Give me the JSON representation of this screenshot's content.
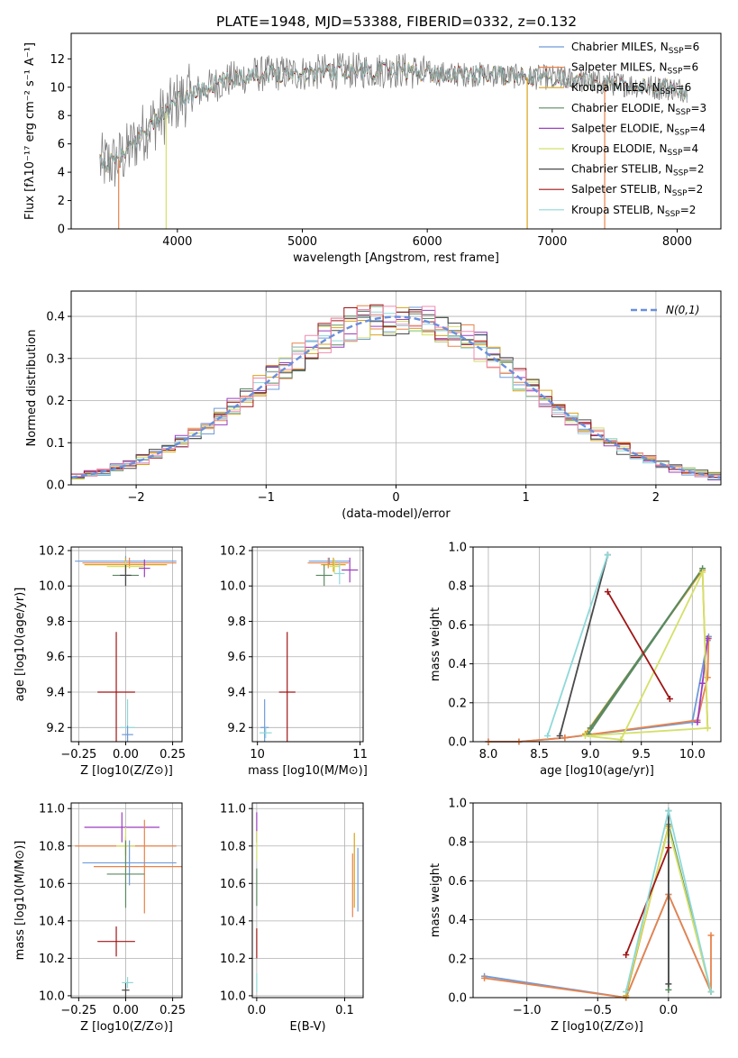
{
  "title": "PLATE=1948, MJD=53388, FIBERID=0332, z=0.132",
  "colors": {
    "chabrier_miles": "#6f9bd8",
    "salpeter_miles": "#e8824a",
    "kroupa_miles": "#d9a21b",
    "chabrier_elodie": "#5b8a62",
    "salpeter_elodie": "#9b3fbf",
    "kroupa_elodie": "#d4e06a",
    "chabrier_stelib": "#4a4a4a",
    "salpeter_stelib": "#a01515",
    "kroupa_stelib": "#8fd8d8",
    "data": "#808080",
    "normal_curve": "#6a8fdc"
  },
  "chart_data": [
    {
      "id": "spectrum",
      "type": "line",
      "xlabel": "wavelength [Angstrom, rest frame]",
      "ylabel": "Flux [fλ10⁻¹⁷ erg cm⁻² s⁻¹ A⁻¹]",
      "xlim": [
        3150,
        8350
      ],
      "ylim": [
        0,
        13.8
      ],
      "xticks": [
        4000,
        5000,
        6000,
        7000,
        8000
      ],
      "yticks": [
        0,
        2,
        4,
        6,
        8,
        10,
        12
      ],
      "x_range_data": [
        3380,
        8080
      ],
      "continuum": {
        "x": [
          3380,
          3500,
          3600,
          3700,
          3800,
          3900,
          4000,
          4100,
          4200,
          4300,
          4400,
          4600,
          4800,
          5000,
          5200,
          5500,
          5800,
          6000,
          6200,
          6500,
          6800,
          7000,
          7200,
          7400,
          7600,
          7800,
          8000,
          8080
        ],
        "y": [
          4.6,
          4.7,
          5.4,
          6.6,
          7.5,
          8.1,
          9.0,
          9.5,
          9.8,
          10.2,
          10.5,
          10.9,
          11.0,
          11.0,
          11.1,
          11.2,
          11.2,
          11.0,
          10.9,
          10.9,
          10.7,
          10.7,
          10.5,
          10.3,
          10.2,
          10.0,
          9.9,
          9.8
        ]
      },
      "legend": [
        {
          "label": "Chabrier MILES, N",
          "sub": "SSP",
          "suffix": "=6",
          "color": "#6f9bd8"
        },
        {
          "label": "Salpeter MILES, N",
          "sub": "SSP",
          "suffix": "=6",
          "color": "#e8824a"
        },
        {
          "label": "Kroupa MILES, N",
          "sub": "SSP",
          "suffix": "=6",
          "color": "#d9a21b"
        },
        {
          "label": "Chabrier ELODIE, N",
          "sub": "SSP",
          "suffix": "=3",
          "color": "#5b8a62"
        },
        {
          "label": "Salpeter ELODIE, N",
          "sub": "SSP",
          "suffix": "=4",
          "color": "#9b3fbf"
        },
        {
          "label": "Kroupa ELODIE, N",
          "sub": "SSP",
          "suffix": "=4",
          "color": "#d4e06a"
        },
        {
          "label": "Chabrier STELIB, N",
          "sub": "SSP",
          "suffix": "=2",
          "color": "#4a4a4a"
        },
        {
          "label": "Salpeter STELIB, N",
          "sub": "SSP",
          "suffix": "=2",
          "color": "#a01515"
        },
        {
          "label": "Kroupa STELIB, N",
          "sub": "SSP",
          "suffix": "=2",
          "color": "#8fd8d8"
        }
      ]
    },
    {
      "id": "residuals",
      "type": "line",
      "xlabel": "(data-model)/error",
      "ylabel": "Normed distribution",
      "xlim": [
        -2.5,
        2.5
      ],
      "ylim": [
        0,
        0.46
      ],
      "xticks": [
        -2,
        -1,
        0,
        1,
        2
      ],
      "xtick_labels": [
        "−2",
        "−1",
        "0",
        "1",
        "2"
      ],
      "yticks": [
        0.0,
        0.1,
        0.2,
        0.3,
        0.4
      ],
      "ytick_labels": [
        "0.0",
        "0.1",
        "0.2",
        "0.3",
        "0.4"
      ],
      "legend_label": "N(0,1)",
      "bin_width": 0.1
    },
    {
      "id": "age_vs_Z",
      "type": "scatter",
      "xlabel": "Z [log10(Z/Z⊙)]",
      "ylabel": "age  [log10(age/yr)]",
      "xlim": [
        -0.29,
        0.3
      ],
      "ylim": [
        9.12,
        10.22
      ],
      "xticks": [
        -0.25,
        0.0,
        0.25
      ],
      "xtick_labels": [
        "−0.25",
        "0.00",
        "0.25"
      ],
      "yticks": [
        9.2,
        9.4,
        9.6,
        9.8,
        10.0,
        10.2
      ],
      "ytick_labels": [
        "9.2",
        "9.4",
        "9.6",
        "9.8",
        "10.0",
        "10.2"
      ],
      "points": [
        {
          "color": "#6f9bd8",
          "x": 0.0,
          "y": 10.14,
          "xerr": 0.27,
          "yerr": 0.03
        },
        {
          "color": "#e8824a",
          "x": 0.02,
          "y": 10.13,
          "xerr": 0.25,
          "yerr": 0.03
        },
        {
          "color": "#d9a21b",
          "x": 0.0,
          "y": 10.12,
          "xerr": 0.22,
          "yerr": 0.04
        },
        {
          "color": "#5b8a62",
          "x": 0.0,
          "y": 10.06,
          "xerr": 0.07,
          "yerr": 0.06
        },
        {
          "color": "#9b3fbf",
          "x": 0.1,
          "y": 10.1,
          "xerr": 0.03,
          "yerr": 0.05
        },
        {
          "color": "#d4e06a",
          "x": 0.0,
          "y": 10.11,
          "xerr": 0.1,
          "yerr": 0.03
        },
        {
          "color": "#4a4a4a",
          "x": 0.0,
          "y": 10.06,
          "xerr": 0.03,
          "yerr": 0.06
        },
        {
          "color": "#a01515",
          "x": -0.05,
          "y": 9.4,
          "xerr": 0.1,
          "yerr": 0.34
        },
        {
          "color": "#8fd8d8",
          "x": 0.01,
          "y": 9.2,
          "xerr": 0.04,
          "yerr": 0.16
        },
        {
          "color": "#6f9bd8",
          "x": 0.01,
          "y": 9.16,
          "xerr": 0.03,
          "yerr": 0.05
        }
      ]
    },
    {
      "id": "age_vs_mass",
      "type": "scatter",
      "xlabel": "mass [log10(M/M⊙)]",
      "ylabel": "",
      "xlim": [
        9.95,
        11.03
      ],
      "ylim": [
        9.12,
        10.22
      ],
      "xticks": [
        10,
        11
      ],
      "xtick_labels": [
        "10",
        "11"
      ],
      "yticks": [
        9.2,
        9.4,
        9.6,
        9.8,
        10.0,
        10.2
      ],
      "ytick_labels": [
        "9.2",
        "9.4",
        "9.6",
        "9.8",
        "10.0",
        "10.2"
      ],
      "points": [
        {
          "color": "#6f9bd8",
          "x": 10.7,
          "y": 10.14,
          "xerr": 0.2,
          "yerr": 0.02
        },
        {
          "color": "#e8824a",
          "x": 10.69,
          "y": 10.13,
          "xerr": 0.2,
          "yerr": 0.03
        },
        {
          "color": "#d9a21b",
          "x": 10.74,
          "y": 10.12,
          "xerr": 0.12,
          "yerr": 0.04
        },
        {
          "color": "#5b8a62",
          "x": 10.65,
          "y": 10.06,
          "xerr": 0.08,
          "yerr": 0.06
        },
        {
          "color": "#9b3fbf",
          "x": 10.9,
          "y": 10.09,
          "xerr": 0.08,
          "yerr": 0.07
        },
        {
          "color": "#d4e06a",
          "x": 10.75,
          "y": 10.11,
          "xerr": 0.05,
          "yerr": 0.04
        },
        {
          "color": "#8fd8d8",
          "x": 10.8,
          "y": 10.07,
          "xerr": 0.05,
          "yerr": 0.06
        },
        {
          "color": "#a01515",
          "x": 10.29,
          "y": 9.4,
          "xerr": 0.08,
          "yerr": 0.34
        },
        {
          "color": "#6f9bd8",
          "x": 10.07,
          "y": 9.2,
          "xerr": 0.04,
          "yerr": 0.16
        },
        {
          "color": "#8fd8d8",
          "x": 10.08,
          "y": 9.17,
          "xerr": 0.06,
          "yerr": 0.03
        }
      ]
    },
    {
      "id": "weight_vs_age",
      "type": "line",
      "xlabel": "age  [log10(age/yr)]",
      "ylabel": "mass weight",
      "xlim": [
        7.85,
        10.28
      ],
      "ylim": [
        0,
        1.0
      ],
      "xticks": [
        8.0,
        8.5,
        9.0,
        9.5,
        10.0
      ],
      "xtick_labels": [
        "8.0",
        "8.5",
        "9.0",
        "9.5",
        "10.0"
      ],
      "yticks": [
        0.0,
        0.2,
        0.4,
        0.6,
        0.8,
        1.0
      ],
      "ytick_labels": [
        "0.0",
        "0.2",
        "0.4",
        "0.6",
        "0.8",
        "1.0"
      ],
      "series": [
        {
          "color": "#6f9bd8",
          "x": [
            8.0,
            8.3,
            8.75,
            10.0,
            10.15,
            10.16
          ],
          "y": [
            0.0,
            0.0,
            0.02,
            0.1,
            0.52,
            0.54
          ]
        },
        {
          "color": "#e8824a",
          "x": [
            8.0,
            8.3,
            8.75,
            10.05,
            10.15,
            10.16
          ],
          "y": [
            0.0,
            0.0,
            0.02,
            0.11,
            0.33,
            0.53
          ]
        },
        {
          "color": "#d9a21b",
          "x": [
            8.95,
            10.1,
            10.15
          ],
          "y": [
            0.04,
            0.88,
            0.07
          ]
        },
        {
          "color": "#5b8a62",
          "x": [
            9.0,
            10.1,
            8.98
          ],
          "y": [
            0.07,
            0.89,
            0.04
          ]
        },
        {
          "color": "#9b3fbf",
          "x": [
            10.05,
            10.1,
            10.15
          ],
          "y": [
            0.1,
            0.3,
            0.53
          ]
        },
        {
          "color": "#d4e06a",
          "x": [
            9.3,
            10.1,
            10.15,
            8.95,
            9.3
          ],
          "y": [
            0.01,
            0.87,
            0.07,
            0.03,
            0.01
          ]
        },
        {
          "color": "#4a4a4a",
          "x": [
            8.7,
            9.17
          ],
          "y": [
            0.03,
            0.96
          ]
        },
        {
          "color": "#a01515",
          "x": [
            9.17,
            9.78
          ],
          "y": [
            0.77,
            0.22
          ]
        },
        {
          "color": "#8fd8d8",
          "x": [
            8.58,
            9.17
          ],
          "y": [
            0.03,
            0.96
          ]
        }
      ]
    },
    {
      "id": "mass_vs_Z",
      "type": "scatter",
      "xlabel": "Z [log10(Z/Z⊙)]",
      "ylabel": "mass [log10(M/M⊙)]",
      "xlim": [
        -0.29,
        0.3
      ],
      "ylim": [
        9.99,
        11.03
      ],
      "xticks": [
        -0.25,
        0.0,
        0.25
      ],
      "xtick_labels": [
        "−0.25",
        "0.00",
        "0.25"
      ],
      "yticks": [
        10.0,
        10.2,
        10.4,
        10.6,
        10.8,
        11.0
      ],
      "ytick_labels": [
        "10.0",
        "10.2",
        "10.4",
        "10.6",
        "10.8",
        "11.0"
      ],
      "points": [
        {
          "color": "#9b3fbf",
          "x": -0.02,
          "y": 10.9,
          "xerr": 0.2,
          "yerr": 0.08
        },
        {
          "color": "#e8824a",
          "x": 0.0,
          "y": 10.8,
          "xerr": 0.27,
          "yerr": 0.05
        },
        {
          "color": "#d4e06a",
          "x": 0.0,
          "y": 10.8,
          "xerr": 0.05,
          "yerr": 0.1
        },
        {
          "color": "#e8824a",
          "x": 0.1,
          "y": 10.69,
          "xerr": 0.27,
          "yerr": 0.25
        },
        {
          "color": "#6f9bd8",
          "x": 0.02,
          "y": 10.71,
          "xerr": 0.25,
          "yerr": 0.12
        },
        {
          "color": "#5b8a62",
          "x": 0.0,
          "y": 10.65,
          "xerr": 0.1,
          "yerr": 0.18
        },
        {
          "color": "#a01515",
          "x": -0.05,
          "y": 10.29,
          "xerr": 0.1,
          "yerr": 0.08
        },
        {
          "color": "#4a4a4a",
          "x": 0.0,
          "y": 10.03,
          "xerr": 0.02,
          "yerr": 0.04
        },
        {
          "color": "#8fd8d8",
          "x": 0.01,
          "y": 10.07,
          "xerr": 0.03,
          "yerr": 0.03
        }
      ]
    },
    {
      "id": "mass_vs_EBV",
      "type": "scatter",
      "xlabel": "E(B-V)",
      "ylabel": "",
      "xlim": [
        -0.005,
        0.121
      ],
      "ylim": [
        9.99,
        11.03
      ],
      "xticks": [
        0.0,
        0.1
      ],
      "xtick_labels": [
        "0.0",
        "0.1"
      ],
      "yticks": [
        10.0,
        10.2,
        10.4,
        10.6,
        10.8,
        11.0
      ],
      "ytick_labels": [
        "10.0",
        "10.2",
        "10.4",
        "10.6",
        "10.8",
        "11.0"
      ],
      "points": [
        {
          "color": "#9b3fbf",
          "x": 0.0,
          "y": 10.9,
          "xerr": 0.0,
          "yerr": 0.08
        },
        {
          "color": "#d4e06a",
          "x": 0.0,
          "y": 10.8,
          "xerr": 0.0,
          "yerr": 0.08
        },
        {
          "color": "#5b8a62",
          "x": 0.0,
          "y": 10.58,
          "xerr": 0.0,
          "yerr": 0.1
        },
        {
          "color": "#a01515",
          "x": 0.0,
          "y": 10.28,
          "xerr": 0.0,
          "yerr": 0.08
        },
        {
          "color": "#8fd8d8",
          "x": 0.0,
          "y": 10.07,
          "xerr": 0.0,
          "yerr": 0.05
        },
        {
          "color": "#e8824a",
          "x": 0.109,
          "y": 10.59,
          "xerr": 0.0,
          "yerr": 0.17
        },
        {
          "color": "#d9a21b",
          "x": 0.111,
          "y": 10.67,
          "xerr": 0.0,
          "yerr": 0.2
        },
        {
          "color": "#6f9bd8",
          "x": 0.115,
          "y": 10.62,
          "xerr": 0.0,
          "yerr": 0.17
        }
      ]
    },
    {
      "id": "weight_vs_Z",
      "type": "line",
      "xlabel": "Z [log10(Z/Z⊙)]",
      "ylabel": "mass weight",
      "xlim": [
        -1.38,
        0.37
      ],
      "ylim": [
        0,
        1.0
      ],
      "xticks": [
        -1.0,
        -0.5,
        0.0
      ],
      "xtick_labels": [
        "−1.0",
        "−0.5",
        "0.0"
      ],
      "yticks": [
        0.0,
        0.2,
        0.4,
        0.6,
        0.8,
        1.0
      ],
      "ytick_labels": [
        "0.0",
        "0.2",
        "0.4",
        "0.6",
        "0.8",
        "1.0"
      ],
      "series": [
        {
          "color": "#6f9bd8",
          "x": [
            -1.3,
            -0.3,
            0.0,
            0.3
          ],
          "y": [
            0.11,
            0.0,
            0.53,
            0.03
          ]
        },
        {
          "color": "#e8824a",
          "x": [
            -1.3,
            -0.3,
            0.0,
            0.3,
            0.3
          ],
          "y": [
            0.1,
            0.0,
            0.53,
            0.03,
            0.32
          ]
        },
        {
          "color": "#d9a21b",
          "x": [
            -0.3,
            0.0,
            0.3
          ],
          "y": [
            0.01,
            0.88,
            0.03
          ]
        },
        {
          "color": "#5b8a62",
          "x": [
            0.0,
            0.0,
            0.3
          ],
          "y": [
            0.04,
            0.89,
            0.03
          ]
        },
        {
          "color": "#d4e06a",
          "x": [
            -0.3,
            0.0,
            0.3
          ],
          "y": [
            0.03,
            0.87,
            0.03
          ]
        },
        {
          "color": "#4a4a4a",
          "x": [
            0.0,
            0.0
          ],
          "y": [
            0.07,
            0.96
          ]
        },
        {
          "color": "#a01515",
          "x": [
            -0.3,
            0.0
          ],
          "y": [
            0.22,
            0.77
          ]
        },
        {
          "color": "#8fd8d8",
          "x": [
            -0.3,
            0.0,
            0.3
          ],
          "y": [
            0.03,
            0.96,
            0.03
          ]
        }
      ]
    }
  ]
}
